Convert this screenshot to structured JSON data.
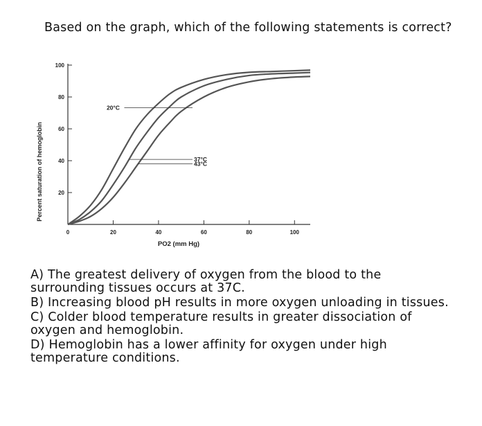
{
  "question": "Based on the graph, which of the following statements is correct?",
  "chart_data": {
    "type": "line",
    "xlabel": "PO2 (mm Hg)",
    "ylabel": "Percent saturation of hemoglobin",
    "xlim": [
      0,
      110
    ],
    "ylim": [
      0,
      100
    ],
    "x_ticks": [
      "0",
      "20",
      "40",
      "60",
      "80",
      "100"
    ],
    "y_ticks": [
      "20",
      "40",
      "60",
      "80",
      "100"
    ],
    "grid": false,
    "series": [
      {
        "name": "20°C",
        "x": [
          0,
          5,
          10,
          15,
          20,
          25,
          30,
          35,
          40,
          45,
          50,
          60,
          70,
          80,
          90,
          100,
          110
        ],
        "values": [
          0,
          5,
          12,
          22,
          35,
          48,
          60,
          69,
          76,
          82,
          86,
          91,
          94,
          95.5,
          96,
          96.5,
          97
        ]
      },
      {
        "name": "37°C",
        "x": [
          0,
          5,
          10,
          15,
          20,
          25,
          30,
          35,
          40,
          45,
          50,
          60,
          70,
          80,
          90,
          100,
          110
        ],
        "values": [
          0,
          3,
          8,
          15,
          25,
          36,
          48,
          58,
          67,
          74,
          80,
          87,
          91,
          93.5,
          94.5,
          95,
          95.5
        ]
      },
      {
        "name": "43°C",
        "x": [
          0,
          5,
          10,
          15,
          20,
          25,
          30,
          35,
          40,
          45,
          50,
          60,
          70,
          80,
          90,
          100,
          110
        ],
        "values": [
          0,
          2,
          5,
          10,
          17,
          26,
          36,
          46,
          56,
          64,
          71,
          80,
          86,
          89.5,
          91.5,
          92.5,
          93
        ]
      }
    ],
    "annotations": [
      {
        "text": "20°C",
        "series": "20°C"
      },
      {
        "text": "37°C",
        "series": "37°C"
      },
      {
        "text": "43°C",
        "series": "43°C"
      }
    ]
  },
  "options": [
    {
      "letter": "A)",
      "text": "The greatest delivery of oxygen from the blood to the surrounding tissues occurs at 37C."
    },
    {
      "letter": "B)",
      "text": "Increasing blood pH results in more oxygen unloading in tissues."
    },
    {
      "letter": "C)",
      "text": "Colder blood temperature results in greater dissociation of oxygen and hemoglobin."
    },
    {
      "letter": "D)",
      "text": "Hemoglobin has a lower affinity for oxygen under high temperature conditions."
    }
  ]
}
